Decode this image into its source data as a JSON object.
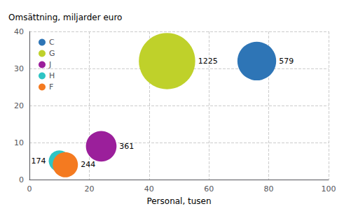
{
  "chart_data": {
    "type": "scatter",
    "xlabel": "Personal, tusen",
    "ylabel": "Omsättning, miljarder euro",
    "series": [
      {
        "name": "C",
        "color": "#2e75b6",
        "x": [
          76
        ],
        "y": [
          32
        ],
        "size": [
          579
        ]
      },
      {
        "name": "G",
        "color": "#bfd12a",
        "x": [
          46
        ],
        "y": [
          32
        ],
        "size": [
          1225
        ]
      },
      {
        "name": "J",
        "color": "#9b1f9b",
        "x": [
          24
        ],
        "y": [
          9
        ],
        "size": [
          361
        ]
      },
      {
        "name": "H",
        "color": "#2ec4c4",
        "x": [
          10
        ],
        "y": [
          5
        ],
        "size": [
          174
        ]
      },
      {
        "name": "F",
        "color": "#f47a20",
        "x": [
          12
        ],
        "y": [
          4
        ],
        "size": [
          244
        ]
      }
    ],
    "xlim": [
      0,
      100
    ],
    "ylim": [
      0,
      40
    ],
    "xticks": [
      0,
      20,
      40,
      60,
      80,
      100
    ],
    "yticks": [
      0,
      10,
      20,
      30,
      40
    ],
    "grid": true,
    "legend": "upper left",
    "data_labels": true
  }
}
